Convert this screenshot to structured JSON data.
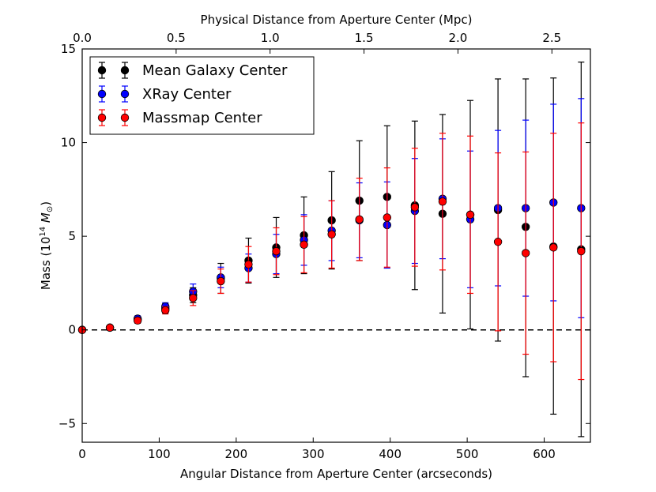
{
  "chart_data": {
    "type": "scatter",
    "title": "",
    "xlabel": "Angular Distance from Aperture Center (arcseconds)",
    "ylabel_prefix": "Mass (10",
    "ylabel_exp": "14",
    "ylabel_unit": " M",
    "ylabel_sub": "⊙",
    "ylabel_suffix": ")",
    "top_xlabel": "Physical Distance from Aperture Center (Mpc)",
    "xlim": [
      0,
      660
    ],
    "ylim": [
      -6,
      15
    ],
    "x_ticks": [
      0,
      100,
      200,
      300,
      400,
      500,
      600
    ],
    "x_tick_labels": [
      "0",
      "100",
      "200",
      "300",
      "400",
      "500",
      "600"
    ],
    "y_ticks": [
      -5,
      0,
      5,
      10,
      15
    ],
    "y_tick_labels": [
      "−5",
      "0",
      "5",
      "10",
      "15"
    ],
    "top_ticks_arcsec": [
      0,
      122,
      244,
      366,
      488,
      610
    ],
    "top_tick_labels": [
      "0.0",
      "0.5",
      "1.0",
      "1.5",
      "2.0",
      "2.5"
    ],
    "reference_line": {
      "y": 0,
      "style": "dashed"
    },
    "legend_position": "top-left",
    "x": [
      0,
      36,
      72,
      108,
      144,
      180,
      216,
      252,
      288,
      324,
      360,
      396,
      432,
      468,
      504,
      540,
      576,
      612,
      648
    ],
    "series": [
      {
        "name": "Mean Galaxy Center",
        "color": "#000000",
        "values": [
          0,
          0.12,
          0.55,
          1.15,
          1.85,
          2.75,
          3.7,
          4.4,
          5.05,
          5.85,
          6.9,
          7.1,
          6.65,
          6.2,
          6.15,
          6.4,
          5.5,
          4.45,
          4.3
        ],
        "err_low": [
          0,
          0.1,
          0.15,
          0.25,
          0.4,
          0.8,
          1.2,
          1.6,
          2.05,
          2.6,
          3.2,
          3.8,
          4.5,
          5.3,
          6.1,
          7.0,
          8.0,
          8.95,
          10.0
        ],
        "err_high": [
          0,
          0.1,
          0.15,
          0.25,
          0.4,
          0.8,
          1.2,
          1.6,
          2.05,
          2.6,
          3.2,
          3.8,
          4.5,
          5.3,
          6.1,
          7.0,
          7.9,
          9.0,
          10.0
        ]
      },
      {
        "name": "XRay Center",
        "color": "#0000ff",
        "values": [
          0,
          0.12,
          0.6,
          1.25,
          2.05,
          2.8,
          3.3,
          4.05,
          4.8,
          5.3,
          5.85,
          5.6,
          6.35,
          7.0,
          5.9,
          6.5,
          6.5,
          6.8,
          6.5
        ],
        "err_low": [
          0,
          0.1,
          0.15,
          0.2,
          0.4,
          0.55,
          0.75,
          1.05,
          1.35,
          1.6,
          2.0,
          2.3,
          2.8,
          3.2,
          3.65,
          4.15,
          4.7,
          5.25,
          5.85
        ],
        "err_high": [
          0,
          0.1,
          0.15,
          0.2,
          0.4,
          0.55,
          0.75,
          1.05,
          1.35,
          1.6,
          2.0,
          2.3,
          2.8,
          3.2,
          3.65,
          4.15,
          4.7,
          5.25,
          5.85
        ]
      },
      {
        "name": "Massmap Center",
        "color": "#ff0000",
        "values": [
          0,
          0.12,
          0.5,
          1.05,
          1.7,
          2.6,
          3.5,
          4.2,
          4.55,
          5.1,
          5.9,
          6.0,
          6.55,
          6.85,
          6.15,
          4.7,
          4.1,
          4.4,
          4.2
        ],
        "err_low": [
          0,
          0.1,
          0.15,
          0.2,
          0.4,
          0.65,
          0.95,
          1.25,
          1.5,
          1.8,
          2.2,
          2.65,
          3.15,
          3.65,
          4.2,
          4.75,
          5.4,
          6.1,
          6.85
        ],
        "err_high": [
          0,
          0.1,
          0.15,
          0.2,
          0.4,
          0.65,
          0.95,
          1.25,
          1.5,
          1.8,
          2.2,
          2.65,
          3.15,
          3.65,
          4.2,
          4.75,
          5.4,
          6.1,
          6.85
        ]
      }
    ]
  }
}
